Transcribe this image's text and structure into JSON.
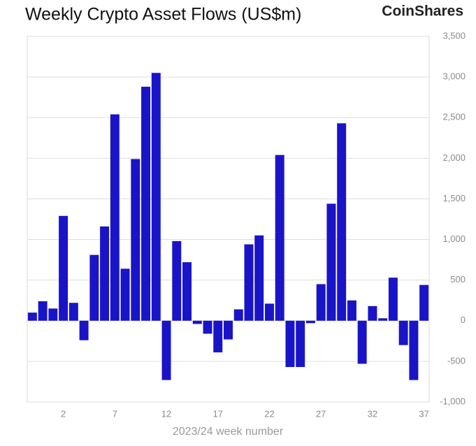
{
  "brand": "CoinShares",
  "chart_data": {
    "type": "bar",
    "title": "Weekly Crypto Asset Flows (US$m)",
    "x_label": "2023/24 week number",
    "categories": [
      null,
      null,
      null,
      "2",
      null,
      null,
      null,
      null,
      "7",
      null,
      null,
      null,
      null,
      "12",
      null,
      null,
      null,
      null,
      "17",
      null,
      null,
      null,
      null,
      "22",
      null,
      null,
      null,
      null,
      "27",
      null,
      null,
      null,
      null,
      "32",
      null,
      null,
      null,
      null,
      "37"
    ],
    "values": [
      100,
      240,
      150,
      1290,
      220,
      -240,
      810,
      1160,
      2540,
      640,
      1990,
      2880,
      3050,
      -730,
      980,
      720,
      -40,
      -160,
      -390,
      -230,
      140,
      940,
      1050,
      210,
      2040,
      -570,
      -570,
      -30,
      450,
      1440,
      2430,
      250,
      -530,
      180,
      30,
      530,
      -300,
      -730,
      440
    ],
    "color": "#1a14c8",
    "ylim": [
      -1000,
      3500
    ],
    "yticks": [
      {
        "value": -1000,
        "label": "-1,000"
      },
      -500,
      0,
      500,
      {
        "value": 1000,
        "label": "1,000"
      },
      {
        "value": 1500,
        "label": "1,500"
      },
      {
        "value": 2000,
        "label": "2,000"
      },
      {
        "value": 2500,
        "label": "2,500"
      },
      {
        "value": 3000,
        "label": "3,000"
      },
      {
        "value": 3500,
        "label": "3,500"
      }
    ],
    "grid": true
  }
}
